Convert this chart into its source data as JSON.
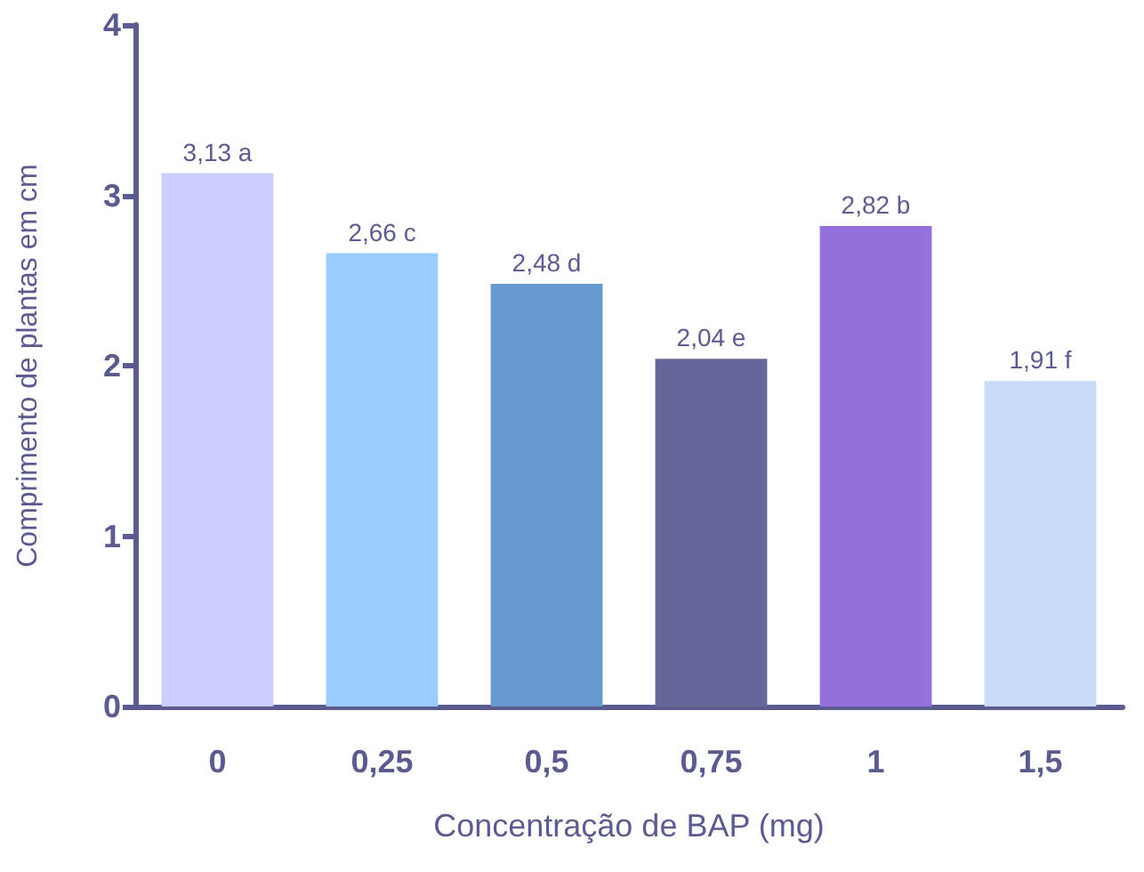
{
  "chart_data": {
    "type": "bar",
    "xlabel": "Concentração de BAP (mg)",
    "ylabel": "Comprimento de plantas em cm",
    "categories": [
      "0",
      "0,25",
      "0,5",
      "0,75",
      "1",
      "1,5"
    ],
    "values": [
      3.13,
      2.66,
      2.48,
      2.04,
      2.82,
      1.91
    ],
    "colors": [
      "#ccccff",
      "#99ccff",
      "#6699cc",
      "#666699",
      "#9370db",
      "#c8dcf8"
    ],
    "value_labels": [
      "3,13 a",
      "2,66 c",
      "2,48 d",
      "2,04 e",
      "2,82 b",
      "1,91 f"
    ],
    "ylim": [
      0,
      4
    ],
    "yticks": [
      0,
      1,
      2,
      3,
      4
    ]
  }
}
